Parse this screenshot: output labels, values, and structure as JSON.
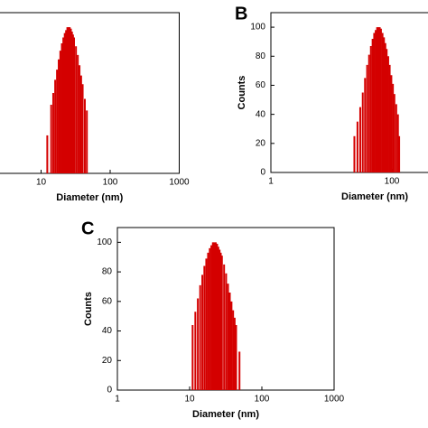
{
  "chart_data": [
    {
      "type": "bar",
      "xlabel": "Diameter (nm)",
      "log_x": true,
      "color": "#d40000",
      "x": [
        12.3,
        14,
        15,
        16,
        17,
        18,
        19,
        20,
        21,
        22,
        23,
        24,
        25,
        26,
        27,
        28,
        29,
        30,
        32,
        34,
        36,
        38,
        40,
        43,
        46
      ],
      "values": [
        26,
        47,
        55,
        64,
        71,
        78,
        84,
        89,
        93,
        96,
        98,
        100,
        100,
        100,
        99,
        97,
        95,
        93,
        87,
        81,
        74,
        67,
        61,
        51,
        43
      ],
      "xlim": [
        1,
        1000
      ],
      "xticks": [
        10,
        100,
        1000
      ],
      "ylim": [
        0,
        110
      ]
    },
    {
      "type": "bar",
      "label": "B",
      "xlabel": "Diameter (nm)",
      "ylabel": "Counts",
      "log_x": true,
      "color": "#d40000",
      "x": [
        24,
        27,
        30,
        33,
        36,
        39,
        42,
        45,
        48,
        51,
        54,
        57,
        60,
        63,
        66,
        70,
        74,
        78,
        82,
        87,
        92,
        98,
        104,
        110,
        118,
        126,
        132
      ],
      "values": [
        25,
        35,
        45,
        55,
        65,
        74,
        81,
        87,
        92,
        96,
        98,
        100,
        100,
        100,
        99,
        96,
        93,
        89,
        85,
        80,
        74,
        67,
        61,
        54,
        47,
        40,
        25
      ],
      "xlim": [
        1,
        1000
      ],
      "xticks": [
        1,
        100
      ],
      "ylim": [
        0,
        110
      ],
      "yticks": [
        0,
        20,
        40,
        60,
        80,
        100
      ]
    },
    {
      "type": "bar",
      "label": "C",
      "xlabel": "Diameter (nm)",
      "ylabel": "Counts",
      "log_x": true,
      "color": "#d40000",
      "x": [
        11,
        12,
        13,
        14,
        15,
        16,
        17,
        18,
        19,
        20,
        21,
        22,
        23,
        24,
        25,
        26,
        27,
        28,
        30,
        32,
        34,
        36,
        38,
        40,
        42,
        44,
        49
      ],
      "values": [
        44,
        53,
        62,
        71,
        78,
        84,
        89,
        93,
        96,
        98,
        100,
        100,
        100,
        99,
        97,
        95,
        93,
        91,
        85,
        79,
        72,
        66,
        60,
        54,
        49,
        44,
        26
      ],
      "xlim": [
        1,
        1000
      ],
      "xticks": [
        1,
        10,
        100,
        1000
      ],
      "ylim": [
        0,
        110
      ],
      "yticks": [
        0,
        20,
        40,
        60,
        80,
        100
      ]
    }
  ]
}
